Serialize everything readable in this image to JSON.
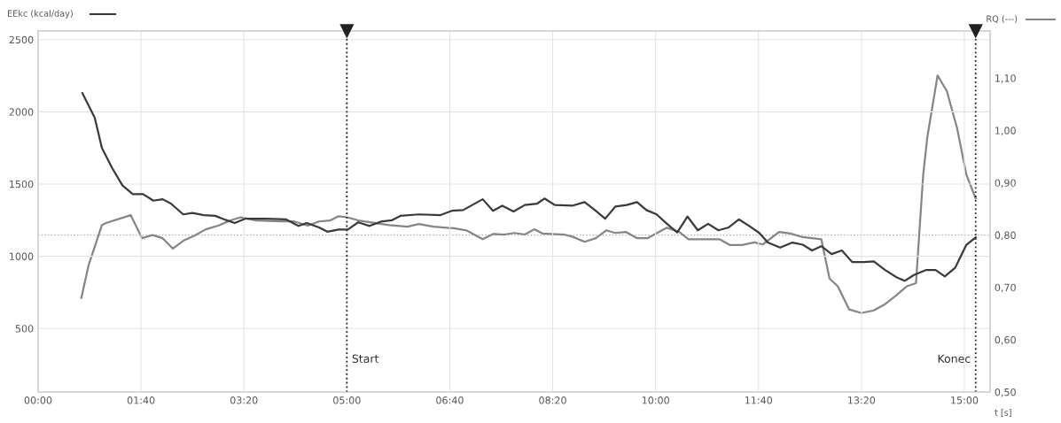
{
  "chart_data": {
    "type": "line",
    "ylabel": "EEkc (kcal/day)",
    "y2label": "RQ (---)",
    "xlabel": "t [s]",
    "xlim": [
      0,
      925
    ],
    "ylim": [
      60,
      2560
    ],
    "y2lim": [
      0.5,
      1.19
    ],
    "xticks": [
      {
        "value": 0,
        "label": "00:00"
      },
      {
        "value": 100,
        "label": "01:40"
      },
      {
        "value": 200,
        "label": "03:20"
      },
      {
        "value": 300,
        "label": "05:00"
      },
      {
        "value": 400,
        "label": "06:40"
      },
      {
        "value": 500,
        "label": "08:20"
      },
      {
        "value": 600,
        "label": "10:00"
      },
      {
        "value": 700,
        "label": "11:40"
      },
      {
        "value": 800,
        "label": "13:20"
      },
      {
        "value": 900,
        "label": "15:00"
      }
    ],
    "yticks": [
      500,
      1000,
      1500,
      2000,
      2500
    ],
    "y2ticks": [
      {
        "value": 0.5,
        "label": "0,50"
      },
      {
        "value": 0.6,
        "label": "0,60"
      },
      {
        "value": 0.7,
        "label": "0,70"
      },
      {
        "value": 0.8,
        "label": "0,80"
      },
      {
        "value": 0.9,
        "label": "0,90"
      },
      {
        "value": 1.0,
        "label": "1,00"
      },
      {
        "value": 1.1,
        "label": "1,10"
      }
    ],
    "grid": true,
    "marker": "none",
    "line_style": "solid",
    "series": [
      {
        "color": "#3a3a3a",
        "x": [
          43,
          55,
          62,
          72,
          82,
          92,
          102,
          112,
          121,
          129,
          141,
          150,
          161,
          172,
          181,
          191,
          201,
          221,
          241,
          253,
          261,
          273,
          281,
          292,
          301,
          311,
          322,
          333,
          344,
          352,
          370,
          391,
          402,
          413,
          432,
          442,
          451,
          462,
          473,
          485,
          492,
          502,
          519,
          531,
          541,
          551,
          561,
          572,
          582,
          591,
          601,
          611,
          621,
          631,
          641,
          651,
          661,
          671,
          681,
          691,
          701,
          709,
          721,
          733,
          743,
          752,
          761,
          771,
          781,
          791,
          803,
          812,
          823,
          834,
          842,
          851,
          863,
          872,
          881,
          891,
          902,
          911
        ],
        "values": [
          2130,
          1960,
          1750,
          1610,
          1490,
          1430,
          1430,
          1385,
          1395,
          1365,
          1290,
          1300,
          1285,
          1280,
          1255,
          1230,
          1260,
          1260,
          1255,
          1210,
          1230,
          1200,
          1170,
          1185,
          1185,
          1235,
          1210,
          1240,
          1250,
          1280,
          1290,
          1285,
          1315,
          1320,
          1395,
          1315,
          1350,
          1310,
          1355,
          1365,
          1400,
          1355,
          1350,
          1375,
          1320,
          1260,
          1345,
          1355,
          1375,
          1320,
          1290,
          1225,
          1165,
          1275,
          1180,
          1225,
          1180,
          1200,
          1255,
          1210,
          1160,
          1095,
          1060,
          1095,
          1080,
          1040,
          1070,
          1015,
          1040,
          960,
          960,
          965,
          905,
          855,
          830,
          870,
          905,
          905,
          860,
          920,
          1080,
          1130
        ]
      },
      {
        "color": "#858585",
        "axis": "y2",
        "x": [
          42,
          49,
          62,
          66,
          90,
          101,
          111,
          121,
          131,
          141,
          152,
          163,
          175,
          187,
          197,
          212,
          236,
          249,
          262,
          273,
          284,
          292,
          300,
          311,
          324,
          341,
          359,
          370,
          384,
          404,
          416,
          432,
          442,
          453,
          463,
          473,
          482,
          490,
          511,
          519,
          531,
          542,
          552,
          561,
          571,
          582,
          592,
          611,
          623,
          632,
          651,
          662,
          672,
          684,
          696,
          704,
          720,
          731,
          743,
          761,
          769,
          777,
          788,
          800,
          812,
          823,
          834,
          844,
          853,
          860,
          864,
          874,
          883,
          893,
          902,
          911
        ],
        "values": [
          0.68,
          0.742,
          0.819,
          0.823,
          0.838,
          0.794,
          0.8,
          0.794,
          0.774,
          0.789,
          0.799,
          0.811,
          0.818,
          0.828,
          0.834,
          0.828,
          0.826,
          0.826,
          0.818,
          0.826,
          0.828,
          0.836,
          0.834,
          0.828,
          0.824,
          0.819,
          0.816,
          0.821,
          0.816,
          0.813,
          0.809,
          0.792,
          0.802,
          0.801,
          0.804,
          0.801,
          0.811,
          0.803,
          0.801,
          0.797,
          0.787,
          0.794,
          0.809,
          0.804,
          0.806,
          0.794,
          0.794,
          0.814,
          0.806,
          0.792,
          0.792,
          0.792,
          0.781,
          0.781,
          0.786,
          0.782,
          0.806,
          0.803,
          0.796,
          0.792,
          0.717,
          0.702,
          0.658,
          0.651,
          0.656,
          0.668,
          0.685,
          0.702,
          0.708,
          0.915,
          0.987,
          1.105,
          1.075,
          1.004,
          0.915,
          0.87
        ]
      }
    ],
    "ref_lines": [
      {
        "axis": "x",
        "value": 300,
        "label": "Start",
        "color": "#222222",
        "line_style": "dotted"
      },
      {
        "axis": "x",
        "value": 911,
        "label": "Konec",
        "color": "#222222",
        "line_style": "dotted"
      },
      {
        "axis": "y2",
        "value": 0.8,
        "color": "#aaaaaa",
        "line_style": "dotted"
      }
    ]
  }
}
